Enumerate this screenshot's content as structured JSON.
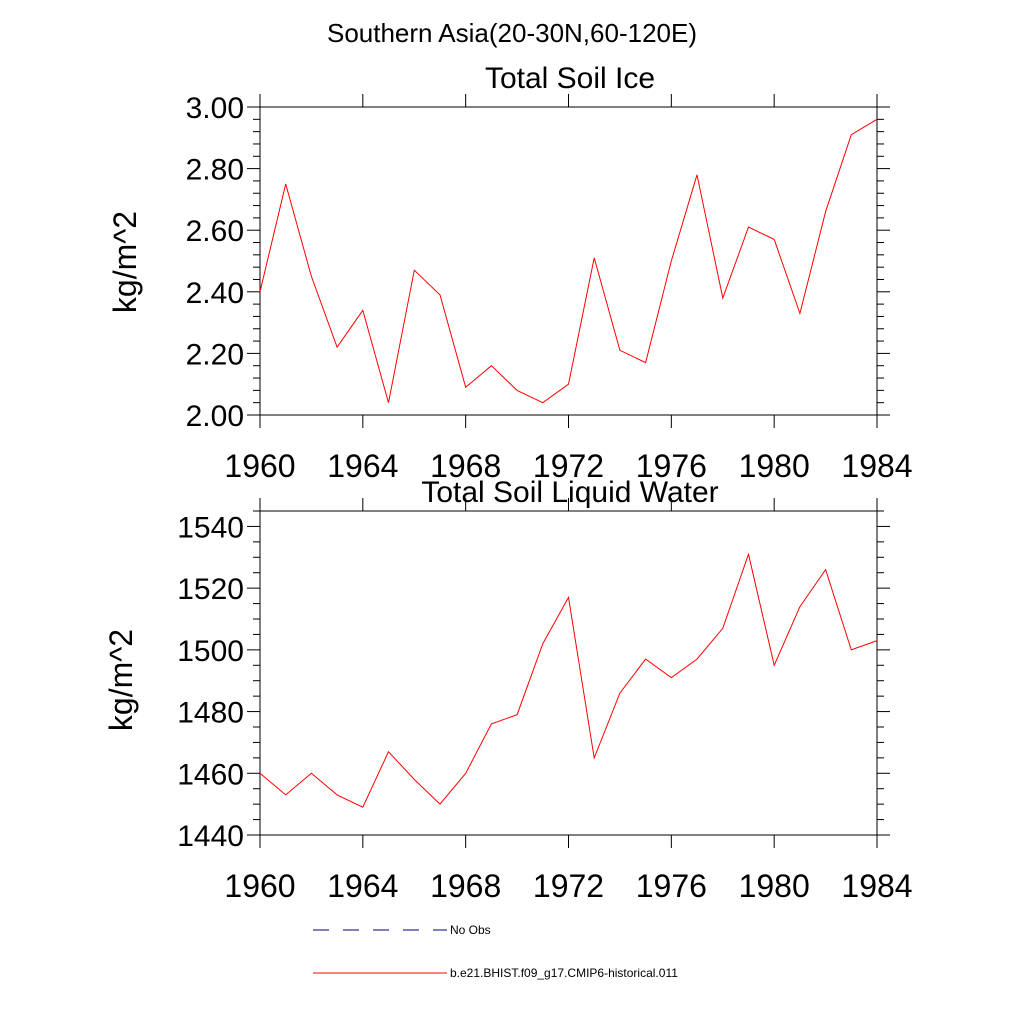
{
  "figure": {
    "suptitle": "Southern Asia(20-30N,60-120E)"
  },
  "colors": {
    "model_line": "#ff0000",
    "obs_line": "#000080"
  },
  "legend": {
    "obs_label": "No Obs",
    "model_label": "b.e21.BHIST.f09_g17.CMIP6-historical.011"
  },
  "chart_data": [
    {
      "type": "line",
      "title": "Total Soil Ice",
      "xlabel": "",
      "ylabel": "kg/m^2",
      "xlim": [
        1960,
        1984
      ],
      "ylim": [
        2.0,
        3.0
      ],
      "xticks": [
        1960,
        1964,
        1968,
        1972,
        1976,
        1980,
        1984
      ],
      "xtick_labels": [
        "1960",
        "1964",
        "1968",
        "1972",
        "1976",
        "1980",
        "1984"
      ],
      "yticks": [
        2.0,
        2.2,
        2.4,
        2.6,
        2.8,
        3.0
      ],
      "ytick_labels": [
        "2.00",
        "2.20",
        "2.40",
        "2.60",
        "2.80",
        "3.00"
      ],
      "grid": false,
      "series": [
        {
          "name": "b.e21.BHIST.f09_g17.CMIP6-historical.011",
          "color": "#ff0000",
          "x": [
            1960,
            1961,
            1962,
            1963,
            1964,
            1965,
            1966,
            1967,
            1968,
            1969,
            1970,
            1971,
            1972,
            1973,
            1974,
            1975,
            1976,
            1977,
            1978,
            1979,
            1980,
            1981,
            1982,
            1983,
            1984
          ],
          "y": [
            2.4,
            2.75,
            2.45,
            2.22,
            2.34,
            2.04,
            2.47,
            2.39,
            2.09,
            2.16,
            2.08,
            2.04,
            2.1,
            2.51,
            2.21,
            2.17,
            2.5,
            2.78,
            2.38,
            2.61,
            2.57,
            2.33,
            2.66,
            2.91,
            2.96
          ]
        }
      ]
    },
    {
      "type": "line",
      "title": "Total Soil Liquid Water",
      "xlabel": "",
      "ylabel": "kg/m^2",
      "xlim": [
        1960,
        1984
      ],
      "ylim": [
        1440,
        1545
      ],
      "xticks": [
        1960,
        1964,
        1968,
        1972,
        1976,
        1980,
        1984
      ],
      "xtick_labels": [
        "1960",
        "1964",
        "1968",
        "1972",
        "1976",
        "1980",
        "1984"
      ],
      "yticks": [
        1440,
        1460,
        1480,
        1500,
        1520,
        1540
      ],
      "ytick_labels": [
        "1440",
        "1460",
        "1480",
        "1500",
        "1520",
        "1540"
      ],
      "grid": false,
      "series": [
        {
          "name": "b.e21.BHIST.f09_g17.CMIP6-historical.011",
          "color": "#ff0000",
          "x": [
            1960,
            1961,
            1962,
            1963,
            1964,
            1965,
            1966,
            1967,
            1968,
            1969,
            1970,
            1971,
            1972,
            1973,
            1974,
            1975,
            1976,
            1977,
            1978,
            1979,
            1980,
            1981,
            1982,
            1983,
            1984
          ],
          "y": [
            1460,
            1453,
            1460,
            1453,
            1449,
            1467,
            1458,
            1450,
            1460,
            1476,
            1479,
            1502,
            1517,
            1465,
            1486,
            1497,
            1491,
            1497,
            1507,
            1531,
            1495,
            1514,
            1526,
            1500,
            1503
          ]
        }
      ]
    }
  ]
}
